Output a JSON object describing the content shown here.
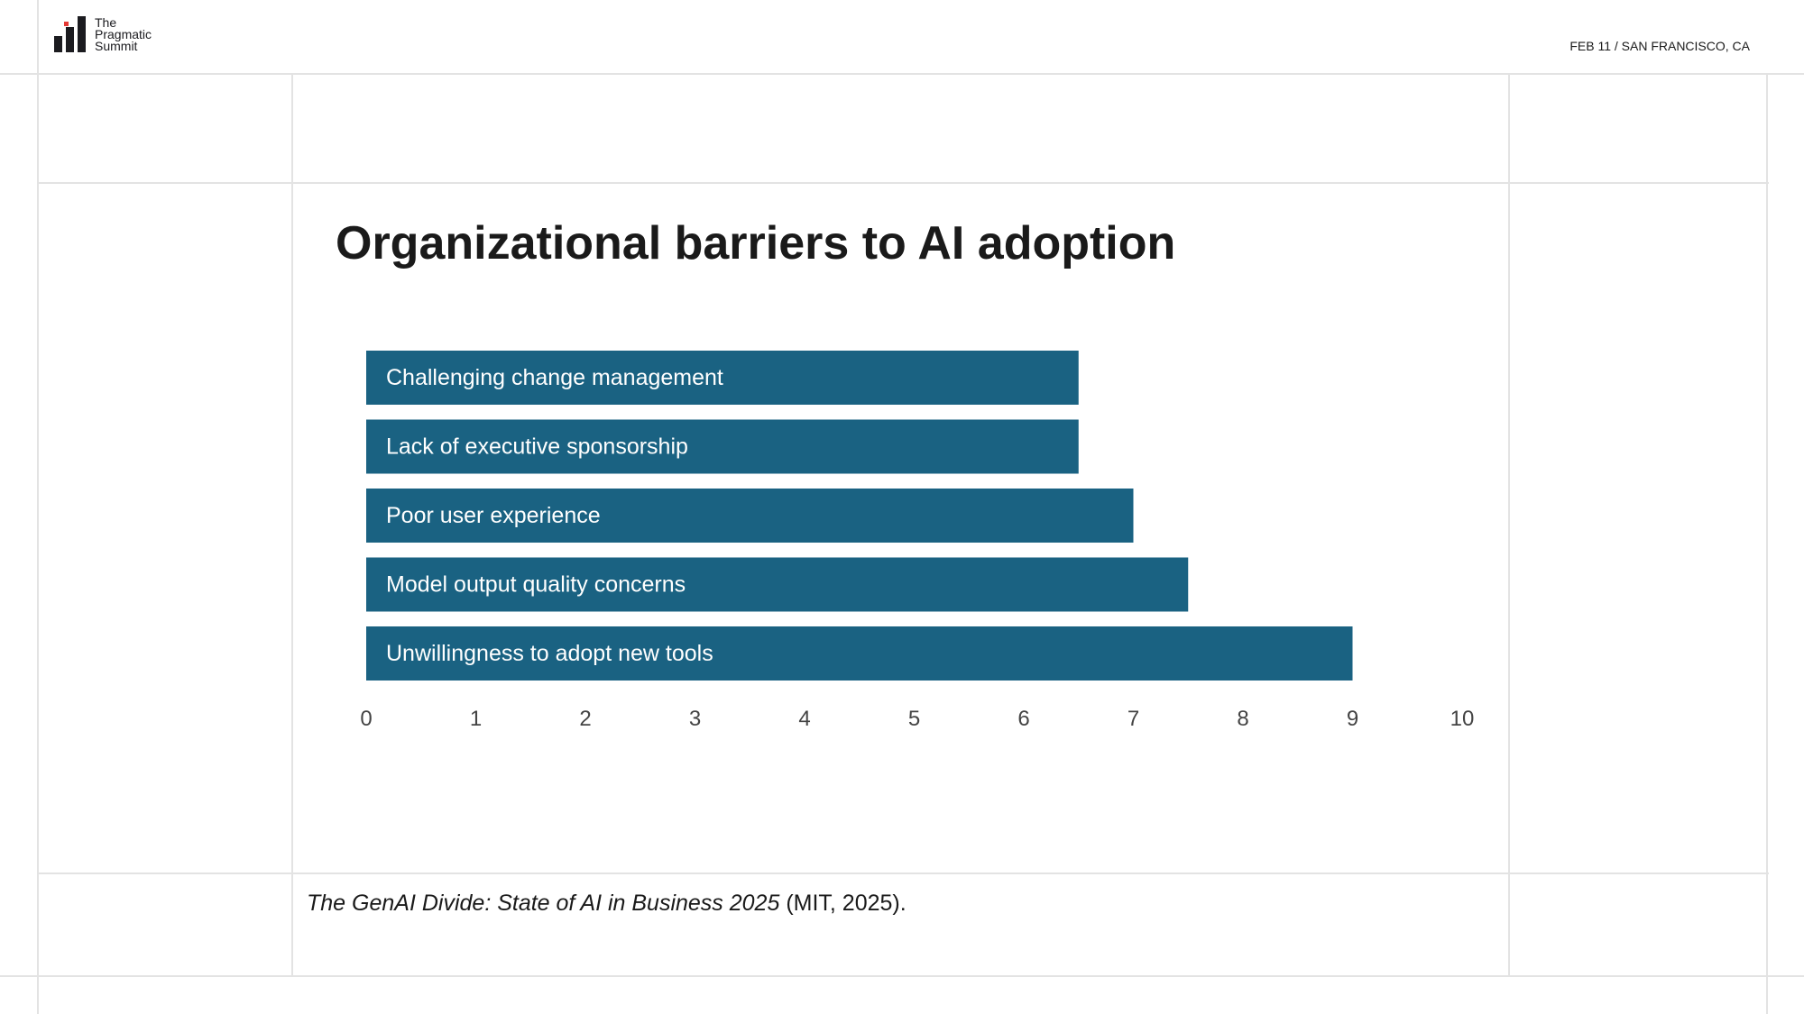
{
  "header": {
    "logo_text": [
      "The",
      "Pragmatic",
      "Summit"
    ],
    "date_location": "FEB 11 / SAN FRANCISCO, CA"
  },
  "slide": {
    "title": "Organizational barriers to AI adoption"
  },
  "citation": {
    "title": "The GenAI Divide: State of AI in Business 2025",
    "suffix": " (MIT, 2025)."
  },
  "chart_data": {
    "type": "bar",
    "orientation": "horizontal",
    "title": "Organizational barriers to AI adoption",
    "categories": [
      "Challenging change management",
      "Lack of executive sponsorship",
      "Poor user experience",
      "Model output quality concerns",
      "Unwillingness to adopt new tools"
    ],
    "values": [
      6.5,
      6.5,
      7,
      7.5,
      9
    ],
    "xlim": [
      0,
      10
    ],
    "xticks": [
      "0",
      "1",
      "2",
      "3",
      "4",
      "5",
      "6",
      "7",
      "8",
      "9",
      "10"
    ],
    "bar_color": "#1a6282",
    "grid": false
  }
}
